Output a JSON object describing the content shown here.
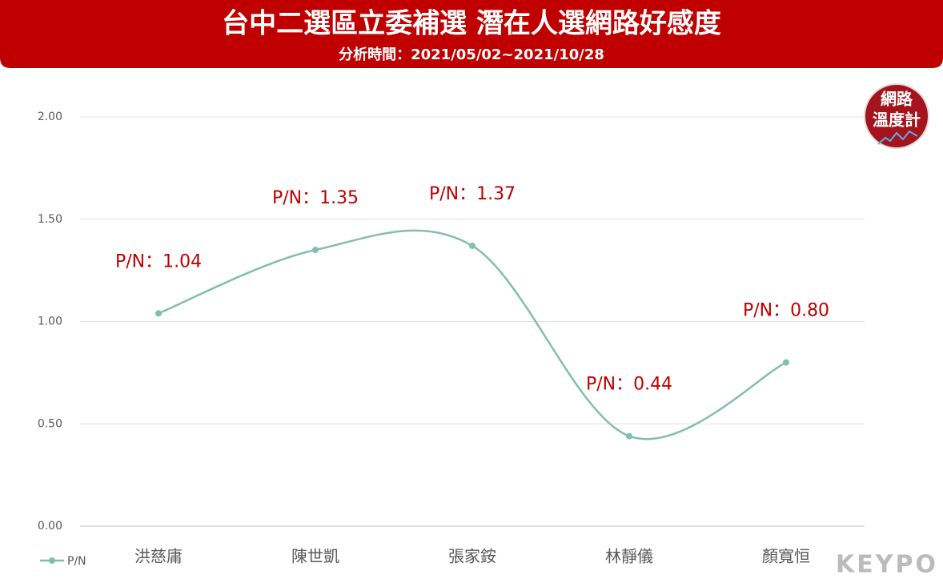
{
  "chart_data": {
    "type": "line",
    "title": "台中二選區立委補選 潛在人選網路好感度",
    "subtitle": "分析時間：2021/05/02~2021/10/28",
    "categories": [
      "洪慈庸",
      "陳世凱",
      "張家銨",
      "林靜儀",
      "顏寬恒"
    ],
    "series": [
      {
        "name": "P/N",
        "color": "#82bfa7",
        "values": [
          1.04,
          1.35,
          1.37,
          0.44,
          0.8
        ],
        "value_labels": [
          "P/N：1.04",
          "P/N：1.35",
          "P/N：1.37",
          "P/N：0.44",
          "P/N：0.80"
        ]
      }
    ],
    "ylim": [
      0,
      2
    ],
    "yticks": [
      {
        "value": 0,
        "label": "0.00"
      },
      {
        "value": 0.5,
        "label": "0.50"
      },
      {
        "value": 1,
        "label": "1.00"
      },
      {
        "value": 1.5,
        "label": "1.50"
      },
      {
        "value": 2,
        "label": "2.00"
      }
    ],
    "grid": true,
    "smooth": true,
    "legend": "bottom-left",
    "badge": [
      "網路",
      "溫度計"
    ],
    "watermark": "KEYPO"
  }
}
